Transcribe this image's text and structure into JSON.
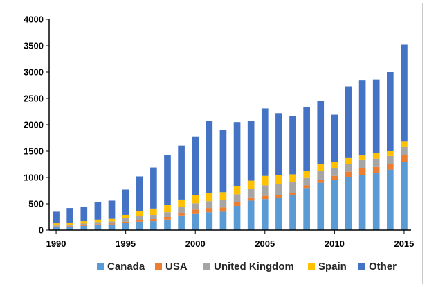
{
  "chart_data": {
    "type": "bar",
    "stacked": true,
    "title": "",
    "xlabel": "",
    "ylabel": "",
    "ylim": [
      0,
      4000
    ],
    "yticks": [
      0,
      500,
      1000,
      1500,
      2000,
      2500,
      3000,
      3500,
      4000
    ],
    "xtick_labels": [
      "1990",
      "1995",
      "2000",
      "2005",
      "2010",
      "2015"
    ],
    "categories": [
      1990,
      1991,
      1992,
      1993,
      1994,
      1995,
      1996,
      1997,
      1998,
      1999,
      2000,
      2001,
      2002,
      2003,
      2004,
      2005,
      2006,
      2007,
      2008,
      2009,
      2010,
      2011,
      2012,
      2013,
      2014,
      2015
    ],
    "grid": false,
    "legend_position": "bottom",
    "series": [
      {
        "name": "Canada",
        "color": "#5b9bd5",
        "values": [
          60,
          70,
          80,
          100,
          110,
          140,
          160,
          170,
          200,
          280,
          320,
          340,
          350,
          460,
          560,
          590,
          610,
          660,
          800,
          900,
          950,
          1010,
          1050,
          1080,
          1150,
          1300
        ]
      },
      {
        "name": "USA",
        "color": "#ed7d31",
        "values": [
          10,
          10,
          15,
          15,
          15,
          20,
          30,
          40,
          50,
          50,
          70,
          80,
          80,
          70,
          60,
          60,
          60,
          50,
          50,
          60,
          80,
          100,
          130,
          120,
          100,
          130
        ]
      },
      {
        "name": "United Kingdom",
        "color": "#a5a5a5",
        "values": [
          20,
          25,
          30,
          40,
          40,
          70,
          80,
          80,
          90,
          110,
          120,
          130,
          140,
          150,
          160,
          200,
          200,
          200,
          140,
          160,
          150,
          150,
          150,
          160,
          160,
          150
        ]
      },
      {
        "name": "Spain",
        "color": "#ffc000",
        "values": [
          40,
          40,
          45,
          45,
          50,
          60,
          90,
          120,
          140,
          140,
          160,
          150,
          150,
          160,
          160,
          180,
          180,
          150,
          140,
          140,
          110,
          110,
          90,
          100,
          90,
          100
        ]
      },
      {
        "name": "Other",
        "color": "#4472c4",
        "values": [
          220,
          275,
          270,
          340,
          345,
          480,
          660,
          780,
          950,
          1030,
          1110,
          1370,
          1180,
          1210,
          1130,
          1280,
          1170,
          1110,
          1210,
          1190,
          900,
          1360,
          1420,
          1400,
          1500,
          1840
        ]
      }
    ]
  }
}
